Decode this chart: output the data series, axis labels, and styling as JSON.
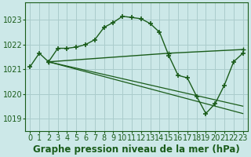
{
  "title": "Graphe pression niveau de la mer (hPa)",
  "bg_color": "#cce8e8",
  "grid_color": "#aacccc",
  "line_color": "#1a5c1a",
  "xlim": [
    -0.5,
    23.5
  ],
  "ylim": [
    1018.5,
    1023.7
  ],
  "yticks": [
    1019,
    1020,
    1021,
    1022,
    1023
  ],
  "xticks": [
    0,
    1,
    2,
    3,
    4,
    5,
    6,
    7,
    8,
    9,
    10,
    11,
    12,
    13,
    14,
    15,
    16,
    17,
    18,
    19,
    20,
    21,
    22,
    23
  ],
  "series": [
    {
      "x": [
        0,
        1,
        2,
        3,
        4,
        5,
        6,
        7,
        8,
        9,
        10,
        11,
        12,
        13,
        14,
        15,
        16,
        17,
        18,
        19,
        20,
        21,
        22,
        23
      ],
      "y": [
        1021.1,
        1021.65,
        1021.3,
        1021.85,
        1021.85,
        1021.9,
        1022.0,
        1022.2,
        1022.7,
        1022.9,
        1023.15,
        1023.1,
        1023.05,
        1022.85,
        1022.5,
        1021.55,
        1020.75,
        1020.65,
        1019.9,
        1019.2,
        1019.6,
        1020.35,
        1021.3,
        1021.65
      ]
    },
    {
      "x": [
        2,
        15,
        23
      ],
      "y": [
        1021.3,
        1021.65,
        1021.8
      ]
    },
    {
      "x": [
        2,
        23
      ],
      "y": [
        1021.3,
        1019.5
      ]
    },
    {
      "x": [
        2,
        23
      ],
      "y": [
        1021.3,
        1019.2
      ]
    }
  ],
  "xlabel_fontsize": 8.5,
  "tick_fontsize": 7,
  "title_color": "#1a5c1a"
}
